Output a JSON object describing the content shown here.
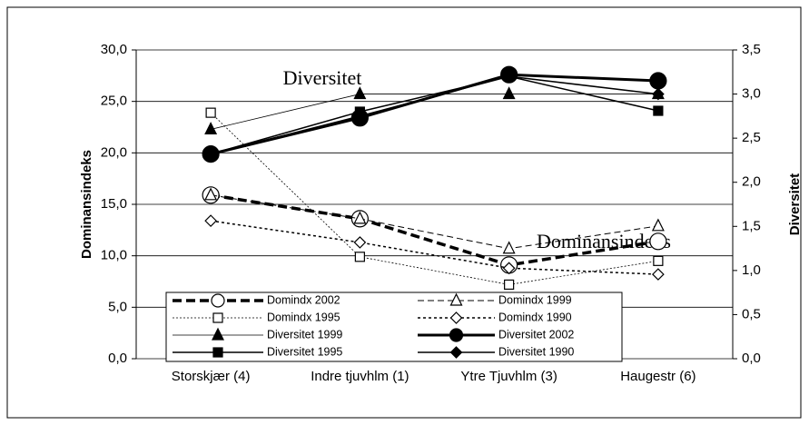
{
  "chart_data": {
    "type": "line",
    "categories": [
      "Storskjær (4)",
      "Indre tjuvhlm (1)",
      "Ytre Tjuvhlm (3)",
      "Haugestr (6)"
    ],
    "ylabel": "Dominansindeks",
    "y2label": "Diversitet",
    "ylim": [
      0,
      30
    ],
    "yticks": [
      {
        "value": 0,
        "label": "0,0"
      },
      {
        "value": 5,
        "label": "5,0"
      },
      {
        "value": 10,
        "label": "10,0"
      },
      {
        "value": 15,
        "label": "15,0"
      },
      {
        "value": 20,
        "label": "20,0"
      },
      {
        "value": 25,
        "label": "25,0"
      },
      {
        "value": 30,
        "label": "30,0"
      }
    ],
    "y2lim": [
      0,
      3.5
    ],
    "y2ticks": [
      {
        "value": 0,
        "label": "0,0"
      },
      {
        "value": 0.5,
        "label": "0,5"
      },
      {
        "value": 1,
        "label": "1,0"
      },
      {
        "value": 1.5,
        "label": "1,5"
      },
      {
        "value": 2,
        "label": "2,0"
      },
      {
        "value": 2.5,
        "label": "2,5"
      },
      {
        "value": 3,
        "label": "3,0"
      },
      {
        "value": 3.5,
        "label": "3,5"
      }
    ],
    "grid": true,
    "annotations": [
      "Diversitet",
      "Dominansindeks"
    ],
    "series": [
      {
        "name": "Domindx 2002",
        "color": "#000000",
        "marker": "circle-open",
        "line_style": "thick-dash",
        "values": [
          15.9,
          13.6,
          9.1,
          11.4
        ]
      },
      {
        "name": "Domindx 1999",
        "color": "#000000",
        "marker": "triangle-open",
        "line_style": "dash",
        "values": [
          15.9,
          13.6,
          10.7,
          12.9
        ]
      },
      {
        "name": "Domindx 1995",
        "color": "#000000",
        "marker": "square-open",
        "line_style": "fine-dot",
        "values": [
          23.9,
          9.9,
          7.2,
          9.5
        ]
      },
      {
        "name": "Domindx 1990",
        "color": "#000000",
        "marker": "diamond-open",
        "line_style": "dot",
        "values": [
          13.4,
          11.3,
          8.8,
          8.2
        ]
      },
      {
        "name": "Diversitet 1999",
        "color": "#000000",
        "marker": "triangle",
        "line_style": "thin",
        "axis": "y2",
        "values": [
          2.6,
          3.0,
          3.0,
          3.0
        ]
      },
      {
        "name": "Diversitet 2002",
        "color": "#000000",
        "marker": "circle",
        "line_style": "thick",
        "axis": "y2",
        "values": [
          2.32,
          2.73,
          3.22,
          3.15
        ]
      },
      {
        "name": "Diversitet 1995",
        "color": "#000000",
        "marker": "square",
        "line_style": "solid",
        "axis": "y2",
        "values": [
          2.32,
          2.8,
          3.2,
          2.81
        ]
      },
      {
        "name": "Diversitet 1990",
        "color": "#000000",
        "marker": "diamond",
        "line_style": "solid",
        "axis": "y2",
        "values": [
          2.32,
          2.75,
          3.2,
          3.0
        ]
      }
    ]
  }
}
